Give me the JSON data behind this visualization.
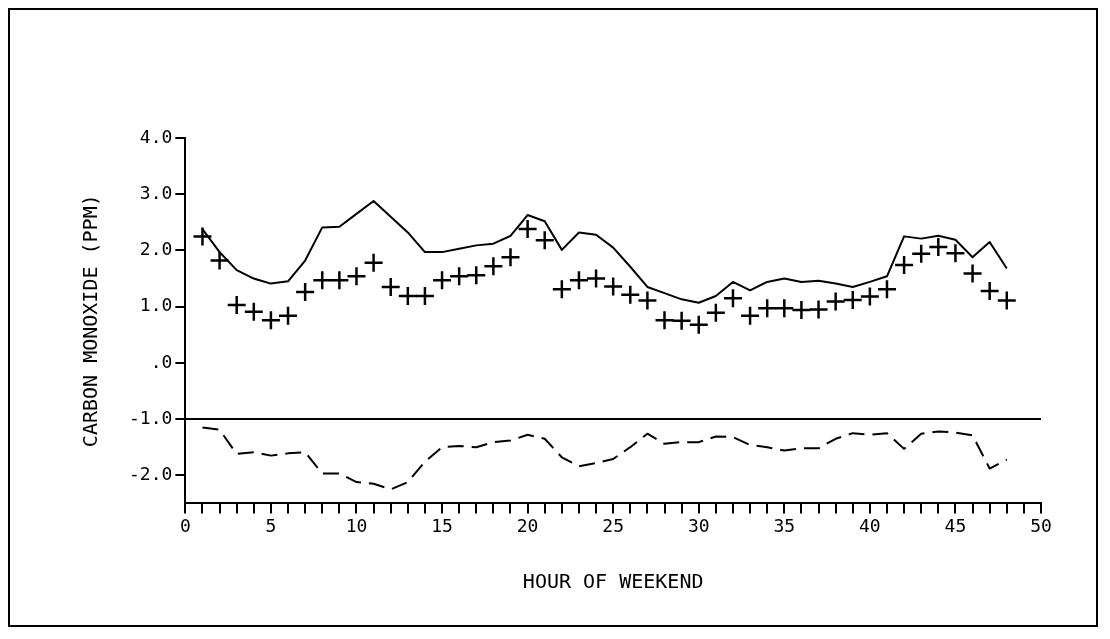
{
  "chart_data": {
    "type": "line",
    "xlabel": "HOUR OF WEEKEND",
    "ylabel": "CARBON MONOXIDE (PPM)",
    "xlim": [
      0,
      50
    ],
    "xticks": [
      0,
      {
        "value": 1,
        "label": null
      },
      {
        "value": 2,
        "label": null
      },
      {
        "value": 3,
        "label": null
      },
      {
        "value": 4,
        "label": null
      },
      5,
      {
        "value": 6,
        "label": null
      },
      {
        "value": 7,
        "label": null
      },
      {
        "value": 8,
        "label": null
      },
      {
        "value": 9,
        "label": null
      },
      10,
      {
        "value": 11,
        "label": null
      },
      {
        "value": 12,
        "label": null
      },
      {
        "value": 13,
        "label": null
      },
      {
        "value": 14,
        "label": null
      },
      15,
      {
        "value": 16,
        "label": null
      },
      {
        "value": 17,
        "label": null
      },
      {
        "value": 18,
        "label": null
      },
      {
        "value": 19,
        "label": null
      },
      20,
      {
        "value": 21,
        "label": null
      },
      {
        "value": 22,
        "label": null
      },
      {
        "value": 23,
        "label": null
      },
      {
        "value": 24,
        "label": null
      },
      25,
      {
        "value": 26,
        "label": null
      },
      {
        "value": 27,
        "label": null
      },
      {
        "value": 28,
        "label": null
      },
      {
        "value": 29,
        "label": null
      },
      30,
      {
        "value": 31,
        "label": null
      },
      {
        "value": 32,
        "label": null
      },
      {
        "value": 33,
        "label": null
      },
      {
        "value": 34,
        "label": null
      },
      35,
      {
        "value": 36,
        "label": null
      },
      {
        "value": 37,
        "label": null
      },
      {
        "value": 38,
        "label": null
      },
      {
        "value": 39,
        "label": null
      },
      40,
      {
        "value": 41,
        "label": null
      },
      {
        "value": 42,
        "label": null
      },
      {
        "value": 43,
        "label": null
      },
      {
        "value": 44,
        "label": null
      },
      45,
      {
        "value": 46,
        "label": null
      },
      {
        "value": 47,
        "label": null
      },
      {
        "value": 48,
        "label": null
      },
      {
        "value": 49,
        "label": null
      },
      50
    ],
    "ylim": [
      -2.5,
      4.0
    ],
    "yticks": [
      {
        "value": -2,
        "label": "-2.0"
      },
      {
        "value": -1,
        "label": "-1.0"
      },
      {
        "value": 0,
        "label": ".0"
      },
      {
        "value": 1,
        "label": "1.0"
      },
      {
        "value": 2,
        "label": "2.0"
      },
      {
        "value": 3,
        "label": "3.0"
      },
      {
        "value": 4,
        "label": "4.0"
      }
    ],
    "grid": false,
    "legend": false,
    "ref_lines": [
      {
        "axis": "y",
        "value": -1,
        "color": "#000000"
      }
    ],
    "x": [
      1,
      2,
      3,
      4,
      5,
      6,
      7,
      8,
      9,
      10,
      11,
      12,
      13,
      14,
      15,
      16,
      17,
      18,
      19,
      20,
      21,
      22,
      23,
      24,
      25,
      26,
      27,
      28,
      29,
      30,
      31,
      32,
      33,
      34,
      35,
      36,
      37,
      38,
      39,
      40,
      41,
      42,
      43,
      44,
      45,
      46,
      47,
      48
    ],
    "series": [
      {
        "type": "line",
        "color": "#000000",
        "marker": "none",
        "line_style": "solid",
        "values": [
          2.38,
          1.97,
          1.65,
          1.5,
          1.41,
          1.45,
          1.82,
          2.41,
          2.42,
          2.65,
          2.88,
          2.6,
          2.32,
          1.97,
          1.97,
          2.03,
          2.09,
          2.12,
          2.26,
          2.63,
          2.52,
          2.01,
          2.32,
          2.28,
          2.05,
          1.71,
          1.35,
          1.24,
          1.13,
          1.07,
          1.19,
          1.44,
          1.29,
          1.44,
          1.5,
          1.44,
          1.46,
          1.41,
          1.35,
          1.44,
          1.54,
          2.25,
          2.21,
          2.26,
          2.19,
          1.88,
          2.15,
          1.68
        ]
      },
      {
        "type": "scatter",
        "color": "#000000",
        "marker": "cross",
        "values": [
          2.25,
          1.82,
          1.03,
          0.91,
          0.76,
          0.84,
          1.26,
          1.47,
          1.47,
          1.54,
          1.78,
          1.35,
          1.19,
          1.19,
          1.47,
          1.54,
          1.56,
          1.72,
          1.88,
          2.38,
          2.18,
          1.31,
          1.47,
          1.5,
          1.36,
          1.21,
          1.11,
          0.76,
          0.75,
          0.68,
          0.89,
          1.15,
          0.84,
          0.97,
          0.97,
          0.94,
          0.95,
          1.09,
          1.12,
          1.18,
          1.31,
          1.74,
          1.94,
          2.06,
          1.95,
          1.59,
          1.28,
          1.11
        ]
      },
      {
        "type": "line",
        "color": "#000000",
        "marker": "none",
        "line_style": "dashed",
        "values": [
          -1.15,
          -1.19,
          -1.62,
          -1.59,
          -1.65,
          -1.61,
          -1.59,
          -1.97,
          -1.97,
          -2.12,
          -2.15,
          -2.25,
          -2.12,
          -1.76,
          -1.5,
          -1.48,
          -1.5,
          -1.41,
          -1.38,
          -1.28,
          -1.35,
          -1.68,
          -1.84,
          -1.78,
          -1.71,
          -1.5,
          -1.26,
          -1.44,
          -1.41,
          -1.41,
          -1.31,
          -1.32,
          -1.46,
          -1.5,
          -1.56,
          -1.52,
          -1.52,
          -1.35,
          -1.25,
          -1.28,
          -1.25,
          -1.53,
          -1.26,
          -1.22,
          -1.24,
          -1.29,
          -1.88,
          -1.72
        ]
      }
    ]
  }
}
